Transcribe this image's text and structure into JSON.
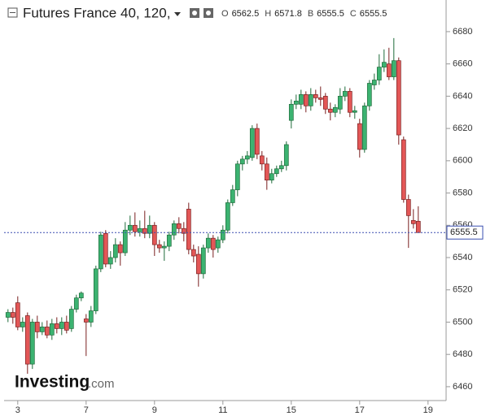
{
  "header": {
    "title": "Futures France 40, 120,",
    "fields": [
      {
        "key": "O",
        "value": "6562.5"
      },
      {
        "key": "H",
        "value": "6571.8"
      },
      {
        "key": "B",
        "value": "6555.5"
      },
      {
        "key": "C",
        "value": "6555.5"
      }
    ]
  },
  "logo": {
    "name": "Investing",
    "suffix": ".com"
  },
  "chart_data": {
    "type": "candlestick",
    "up_color": "#3cb371",
    "down_color": "#e35757",
    "x": [
      0,
      1,
      2,
      3,
      4,
      5,
      6,
      7,
      8,
      9,
      10,
      11,
      12,
      13,
      14,
      15,
      16,
      17,
      18,
      19,
      20,
      21,
      22,
      23,
      24,
      25,
      26,
      27,
      28,
      29,
      30,
      31,
      32,
      33,
      34,
      35,
      36,
      37,
      38,
      39,
      40,
      41,
      42,
      43,
      44,
      45,
      46,
      47,
      48,
      49,
      50,
      51,
      52,
      53,
      54,
      55,
      56,
      57,
      58,
      59,
      60,
      61,
      62,
      63,
      64,
      65,
      66,
      67,
      68,
      69,
      70,
      71,
      72,
      73,
      74,
      75,
      76,
      77,
      78,
      79,
      80,
      81,
      82,
      83,
      84
    ],
    "open": [
      6503,
      6506,
      6512,
      6497,
      6504,
      6474,
      6500,
      6494,
      6497,
      6492,
      6499,
      6496,
      6500,
      6496,
      6508,
      6515,
      6502,
      6500,
      6507,
      6533,
      6555,
      6536,
      6540,
      6548,
      6543,
      6557,
      6560,
      6556,
      6558,
      6555,
      6560,
      6548,
      6546,
      6547,
      6554,
      6561,
      6558,
      6570,
      6545,
      6542,
      6530,
      6546,
      6552,
      6546,
      6551,
      6557,
      6574,
      6582,
      6598,
      6601,
      6602,
      6620,
      6603,
      6598,
      6588,
      6592,
      6595,
      6597,
      6625,
      6635,
      6635,
      6641,
      6634,
      6641,
      6639,
      6640,
      6632,
      6630,
      6632,
      6640,
      6643,
      6630,
      6623,
      6607,
      6634,
      6647,
      6650,
      6658,
      6660,
      6652,
      6662,
      6613,
      6576,
      6563,
      6562.5
    ],
    "close": [
      6506,
      6503,
      6497,
      6500,
      6474,
      6500,
      6494,
      6497,
      6492,
      6499,
      6496,
      6500,
      6495,
      6508,
      6515,
      6518,
      6500,
      6507,
      6533,
      6554,
      6536,
      6540,
      6548,
      6543,
      6557,
      6560,
      6556,
      6558,
      6555,
      6560,
      6548,
      6546,
      6547,
      6554,
      6561,
      6558,
      6555,
      6545,
      6541,
      6530,
      6546,
      6552,
      6545,
      6551,
      6557,
      6574,
      6582,
      6598,
      6601,
      6603,
      6620,
      6604,
      6598,
      6588,
      6592,
      6595,
      6597,
      6610,
      6635,
      6637,
      6641,
      6634,
      6641,
      6639,
      6638,
      6632,
      6630,
      6633,
      6640,
      6643,
      6630,
      6631,
      6607,
      6634,
      6648,
      6650,
      6658,
      6661,
      6652,
      6662,
      6616,
      6576,
      6566,
      6561,
      6555.5
    ],
    "high": [
      6508,
      6509,
      6516,
      6503,
      6506,
      6502,
      6504,
      6500,
      6501,
      6502,
      6503,
      6503,
      6504,
      6510,
      6517,
      6519,
      6505,
      6510,
      6535,
      6556,
      6557,
      6544,
      6552,
      6550,
      6562,
      6566,
      6568,
      6563,
      6569,
      6566,
      6562,
      6551,
      6550,
      6556,
      6563,
      6565,
      6562,
      6574,
      6548,
      6547,
      6548,
      6555,
      6554,
      6553,
      6560,
      6576,
      6585,
      6600,
      6603,
      6606,
      6622,
      6623,
      6606,
      6602,
      6595,
      6597,
      6600,
      6612,
      6638,
      6641,
      6644,
      6643,
      6645,
      6644,
      6646,
      6642,
      6636,
      6635,
      6645,
      6646,
      6645,
      6634,
      6626,
      6636,
      6650,
      6654,
      6666,
      6669,
      6670,
      6676,
      6664,
      6615,
      6579,
      6570,
      6571.8
    ],
    "low": [
      6500,
      6499,
      6495,
      6494,
      6468,
      6471,
      6490,
      6492,
      6490,
      6489,
      6493,
      6492,
      6493,
      6494,
      6506,
      6513,
      6479,
      6497,
      6505,
      6531,
      6534,
      6533,
      6537,
      6535,
      6541,
      6554,
      6553,
      6553,
      6552,
      6552,
      6541,
      6543,
      6538,
      6544,
      6551,
      6555,
      6550,
      6542,
      6537,
      6522,
      6527,
      6543,
      6540,
      6543,
      6549,
      6555,
      6572,
      6578,
      6594,
      6598,
      6600,
      6601,
      6594,
      6582,
      6586,
      6590,
      6593,
      6594,
      6620,
      6632,
      6632,
      6630,
      6631,
      6636,
      6634,
      6629,
      6625,
      6627,
      6629,
      6637,
      6627,
      6626,
      6602,
      6605,
      6631,
      6644,
      6647,
      6655,
      6650,
      6650,
      6610,
      6574,
      6546,
      6558,
      6555.5
    ],
    "last_price": 6555.5,
    "xlim": [
      -0.8,
      89.7
    ],
    "xticks": [
      {
        "value": 2,
        "label": "3"
      },
      {
        "value": 16,
        "label": "7"
      },
      {
        "value": 30,
        "label": "9"
      },
      {
        "value": 44,
        "label": "11"
      },
      {
        "value": 58,
        "label": "15"
      },
      {
        "value": 72,
        "label": "17"
      },
      {
        "value": 86,
        "label": "19"
      }
    ],
    "ylim": [
      6451.4,
      6699.6
    ],
    "yticks": [
      6460,
      6480,
      6500,
      6520,
      6540,
      6560,
      6580,
      6600,
      6620,
      6640,
      6660,
      6680
    ]
  }
}
